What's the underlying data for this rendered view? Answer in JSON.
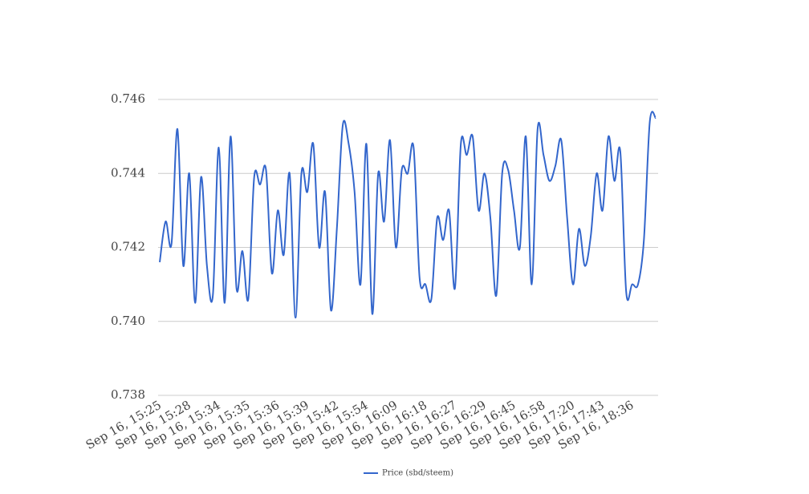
{
  "chart_data": {
    "type": "line",
    "categories": [
      "Sep 16, 15:25",
      null,
      null,
      null,
      null,
      "Sep 16, 15:28",
      null,
      null,
      null,
      null,
      "Sep 16, 15:34",
      null,
      null,
      null,
      null,
      "Sep 16, 15:35",
      null,
      null,
      null,
      null,
      "Sep 16, 15:36",
      null,
      null,
      null,
      null,
      "Sep 16, 15:39",
      null,
      null,
      null,
      null,
      "Sep 16, 15:42",
      null,
      null,
      null,
      null,
      "Sep 16, 15:54",
      null,
      null,
      null,
      null,
      "Sep 16, 16:09",
      null,
      null,
      null,
      null,
      "Sep 16, 16:18",
      null,
      null,
      null,
      null,
      "Sep 16, 16:27",
      null,
      null,
      null,
      null,
      "Sep 16, 16:29",
      null,
      null,
      null,
      null,
      "Sep 16, 16:45",
      null,
      null,
      null,
      null,
      "Sep 16, 16:58",
      null,
      null,
      null,
      null,
      "Sep 16, 17:20",
      null,
      null,
      null,
      null,
      "Sep 16, 17:43",
      null,
      null,
      null,
      null,
      "Sep 16, 18:36",
      null,
      null,
      null,
      null
    ],
    "series": [
      {
        "name": "Price (sbd/steem)",
        "color": "#3366cc",
        "values": [
          0.7416,
          0.7427,
          0.7421,
          0.7452,
          0.7415,
          0.744,
          0.7405,
          0.7439,
          0.7415,
          0.7407,
          0.7447,
          0.7405,
          0.745,
          0.7409,
          0.7419,
          0.7406,
          0.7439,
          0.7437,
          0.7441,
          0.7413,
          0.743,
          0.7418,
          0.744,
          0.7401,
          0.744,
          0.7435,
          0.7448,
          0.742,
          0.7435,
          0.7403,
          0.7425,
          0.7453,
          0.7448,
          0.7435,
          0.741,
          0.7448,
          0.7402,
          0.744,
          0.7427,
          0.7449,
          0.742,
          0.7441,
          0.744,
          0.7447,
          0.7412,
          0.741,
          0.7406,
          0.7428,
          0.7422,
          0.743,
          0.7409,
          0.7448,
          0.7445,
          0.745,
          0.743,
          0.744,
          0.7428,
          0.7407,
          0.744,
          0.7441,
          0.743,
          0.742,
          0.745,
          0.741,
          0.7452,
          0.7445,
          0.7438,
          0.7442,
          0.7449,
          0.7428,
          0.741,
          0.7425,
          0.7415,
          0.7423,
          0.744,
          0.743,
          0.745,
          0.7438,
          0.7446,
          0.7408,
          0.741,
          0.741,
          0.7422,
          0.7454,
          0.7455
        ]
      }
    ],
    "ylim": [
      0.738,
      0.746
    ],
    "yticks": [
      0.738,
      0.74,
      0.742,
      0.744,
      0.746
    ],
    "ytick_labels": [
      "0.738",
      "0.740",
      "0.742",
      "0.744",
      "0.746"
    ],
    "grid": true,
    "legend": "bottom"
  }
}
